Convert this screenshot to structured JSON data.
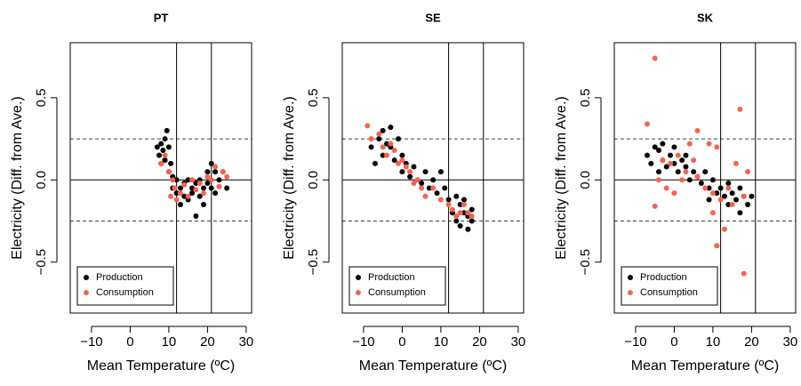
{
  "chart_data": [
    {
      "type": "scatter",
      "title": "PT",
      "xlabel": "Mean Temperature (ºC)",
      "ylabel": "Electricity (Diff. from Ave.)",
      "xlim": [
        -15.5,
        31.4
      ],
      "ylim": [
        -0.81,
        0.835
      ],
      "xticks": [
        {
          "value": -10,
          "label": "−10"
        },
        0,
        10,
        20,
        30
      ],
      "yticks": [
        {
          "value": -0.5,
          "label": "−0.5"
        },
        {
          "value": 0,
          "label": "0.0"
        },
        0.5
      ],
      "vlines": [
        12,
        21
      ],
      "hlines": [
        0
      ],
      "dashed_hlines": [
        -0.25,
        0.25
      ],
      "legend": "bottom-left",
      "series": [
        {
          "name": "Production",
          "color": "#000000",
          "x": [
            7,
            7.5,
            8,
            8,
            8.5,
            9,
            9,
            9.5,
            10,
            10,
            10.5,
            11,
            11,
            12,
            12,
            13,
            13,
            14,
            14,
            15,
            15,
            16,
            16,
            17,
            17,
            18,
            18,
            19,
            19,
            20,
            20,
            21,
            21,
            22,
            22,
            23,
            24,
            25
          ],
          "values": [
            0.2,
            0.15,
            0.22,
            0.1,
            0.18,
            0.25,
            0.12,
            0.3,
            0.2,
            0.05,
            0.1,
            0.02,
            -0.05,
            0,
            -0.08,
            -0.05,
            -0.15,
            -0.02,
            -0.1,
            0,
            -0.12,
            -0.05,
            -0.08,
            -0.02,
            -0.22,
            -0.1,
            0,
            -0.05,
            -0.15,
            0.05,
            -0.02,
            0.1,
            -0.05,
            0.05,
            -0.08,
            0,
            0.05,
            -0.05
          ]
        },
        {
          "name": "Consumption",
          "color": "#f26552",
          "x": [
            8,
            9,
            10,
            10.5,
            11,
            11.5,
            12,
            13,
            14,
            15,
            16,
            17,
            18,
            19,
            20,
            21,
            22,
            23,
            24,
            25
          ],
          "values": [
            0.1,
            0.15,
            0.05,
            -0.1,
            0,
            -0.05,
            -0.12,
            -0.08,
            -0.03,
            -0.1,
            0,
            -0.06,
            -0.02,
            -0.08,
            0.02,
            0,
            0.08,
            -0.04,
            0.05,
            0.02
          ]
        }
      ]
    },
    {
      "type": "scatter",
      "title": "SE",
      "xlabel": "Mean Temperature (ºC)",
      "ylabel": "Electricity (Diff. from Ave.)",
      "xlim": [
        -15.5,
        31.4
      ],
      "ylim": [
        -0.81,
        0.835
      ],
      "xticks": [
        {
          "value": -10,
          "label": "−10"
        },
        0,
        10,
        20,
        30
      ],
      "yticks": [
        {
          "value": -0.5,
          "label": "−0.5"
        },
        {
          "value": 0,
          "label": "0.0"
        },
        0.5
      ],
      "vlines": [
        12,
        21
      ],
      "hlines": [
        0
      ],
      "dashed_hlines": [
        -0.25,
        0.25
      ],
      "legend": "bottom-left",
      "series": [
        {
          "name": "Production",
          "color": "#000000",
          "x": [
            -8,
            -7,
            -6,
            -5,
            -5,
            -4,
            -3,
            -3,
            -2,
            -1,
            0,
            0,
            1,
            2,
            3,
            4,
            5,
            6,
            7,
            8,
            9,
            10,
            11,
            12,
            13,
            14,
            14,
            15,
            15,
            16,
            16,
            17,
            17,
            18,
            18
          ],
          "values": [
            0.2,
            0.1,
            0.25,
            0.3,
            0.15,
            0.22,
            0.32,
            0.2,
            0.12,
            0.25,
            0.15,
            0.05,
            0.1,
            0.02,
            0.08,
            0,
            -0.02,
            0.05,
            -0.05,
            0,
            -0.08,
            0.05,
            -0.05,
            -0.12,
            -0.2,
            -0.1,
            -0.25,
            -0.15,
            -0.28,
            -0.2,
            -0.12,
            -0.22,
            -0.3,
            -0.18,
            -0.25
          ]
        },
        {
          "name": "Consumption",
          "color": "#f26552",
          "x": [
            -9,
            -8,
            -6,
            -5,
            -4,
            -3,
            -2,
            -1,
            0,
            1,
            2,
            3,
            4,
            5,
            6,
            8,
            10,
            12,
            13,
            14,
            15,
            16,
            17,
            18
          ],
          "values": [
            0.33,
            0.25,
            0.28,
            0.2,
            0.15,
            0.22,
            0.18,
            0.1,
            0.12,
            0.08,
            0.05,
            -0.02,
            0,
            -0.05,
            -0.1,
            -0.05,
            -0.12,
            -0.15,
            -0.18,
            -0.22,
            -0.2,
            -0.15,
            -0.2,
            -0.22
          ]
        }
      ]
    },
    {
      "type": "scatter",
      "title": "SK",
      "xlabel": "Mean Temperature (ºC)",
      "ylabel": "Electricity (Diff. from Ave.)",
      "xlim": [
        -15.5,
        31.4
      ],
      "ylim": [
        -0.81,
        0.835
      ],
      "xticks": [
        {
          "value": -10,
          "label": "−10"
        },
        0,
        10,
        20,
        30
      ],
      "yticks": [
        {
          "value": -0.5,
          "label": "−0.5"
        },
        {
          "value": 0,
          "label": "0.0"
        },
        0.5
      ],
      "vlines": [
        12,
        21
      ],
      "hlines": [
        0
      ],
      "dashed_hlines": [
        -0.25,
        0.25
      ],
      "legend": "bottom-left",
      "series": [
        {
          "name": "Production",
          "color": "#000000",
          "x": [
            -7,
            -6,
            -5,
            -4,
            -4,
            -3,
            -2,
            -1,
            0,
            1,
            2,
            3,
            4,
            5,
            6,
            7,
            8,
            9,
            10,
            11,
            12,
            13,
            14,
            15,
            16,
            17,
            18,
            19,
            20,
            -3,
            0,
            3,
            9,
            14,
            17
          ],
          "values": [
            0.15,
            0.1,
            0.2,
            0.05,
            0.18,
            0.12,
            0.08,
            0.15,
            0.1,
            0.05,
            0.12,
            0.08,
            0,
            0.05,
            0.02,
            -0.02,
            0.05,
            -0.05,
            0,
            -0.08,
            -0.05,
            -0.1,
            -0.02,
            -0.08,
            -0.12,
            -0.05,
            -0.1,
            -0.15,
            -0.1,
            0.22,
            0.2,
            0.15,
            -0.12,
            -0.15,
            -0.2
          ]
        },
        {
          "name": "Consumption",
          "color": "#f26552",
          "x": [
            -5,
            -7,
            -5,
            -3,
            -2,
            -1,
            0,
            1,
            2,
            3,
            4,
            5,
            6,
            8,
            9,
            10,
            11,
            12,
            13,
            14,
            15,
            16,
            17,
            18,
            18,
            19,
            -4,
            6,
            10,
            11
          ],
          "values": [
            0.74,
            0.34,
            -0.16,
            0.12,
            -0.05,
            0.1,
            -0.08,
            0.15,
            0,
            0.05,
            0.22,
            0.12,
            0.3,
            -0.05,
            0.22,
            -0.2,
            -0.4,
            -0.12,
            -0.3,
            -0.05,
            -0.15,
            0.1,
            0.43,
            -0.57,
            -0.1,
            0.05,
            0,
            0.02,
            -0.08,
            0.2
          ]
        }
      ]
    }
  ]
}
